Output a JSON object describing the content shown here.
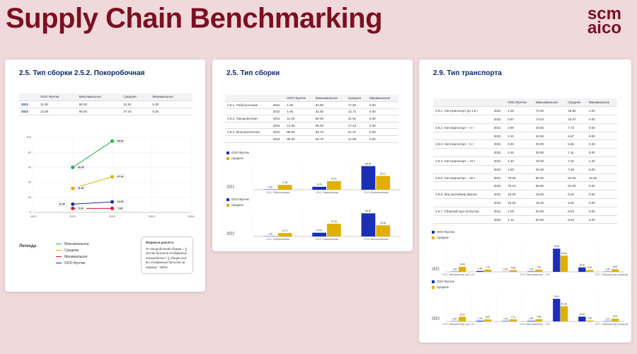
{
  "header": {
    "title": "Supply Chain Benchmarking",
    "logo": [
      "scm",
      "aico"
    ]
  },
  "panels": [
    {
      "title": "2.5. Тип сборки 2.5.2. Покоробочная",
      "table": {
        "columns": [
          "ООО Фунтик",
          "Максимальное",
          "Среднее",
          "Минимальное"
        ],
        "rows": [
          [
            "2021",
            "11.00",
            "60.00",
            "31.91",
            "5.30"
          ],
          [
            "2022",
            "14.00",
            "95.00",
            "47.43",
            "5.30"
          ]
        ]
      },
      "chart": {
        "type": "line",
        "x": [
          2021,
          2022
        ],
        "xlim": [
          2020,
          2024
        ],
        "xticks": [
          2020,
          2021,
          2022,
          2023,
          2024
        ],
        "ylim": [
          0,
          100
        ],
        "yticks": [
          0,
          20,
          40,
          60,
          80,
          100
        ],
        "grid": true,
        "series": [
          {
            "name": "Максимальное",
            "color": "#22b14c",
            "values": [
              60,
              95
            ],
            "value_labels": [
              "60.00",
              "95.00"
            ]
          },
          {
            "name": "Среднее",
            "color": "#e0b000",
            "values": [
              31.91,
              47.43
            ],
            "value_labels": [
              "31.91",
              "47.43"
            ]
          },
          {
            "name": "Минимальное",
            "color": "#e0102a",
            "values": [
              5.3,
              5.3
            ],
            "value_labels": [
              "5.30",
              "5.30"
            ]
          },
          {
            "name": "ООО Фунтик",
            "color": "#1a2fa0",
            "values": [
              11,
              14
            ],
            "value_labels": [
              "11.00",
              "14.00"
            ]
          }
        ]
      },
      "legend_title": "Легенда",
      "formula": {
        "title": "Формула расчета",
        "text": "% покоробочной сборки = ∑ кол-во бутылок отобранных покоробочно / ∑ общее кол-во отобранных бутылок за период * 100%"
      }
    },
    {
      "title": "2.5. Тип сборки",
      "table": {
        "columns": [
          "ООО Фунтик",
          "Максимальное",
          "Среднее",
          "Минимальное"
        ],
        "rows": [
          [
            "2.5.1. Побутылочная",
            "2021",
            "1.00",
            "54.00",
            "17.82",
            "0.00"
          ],
          [
            "2022",
            "1.00",
            "31.00",
            "12.71",
            "0.00"
          ],
          [
            "2.5.2. Покоробочная",
            "2021",
            "11.00",
            "60.00",
            "31.91",
            "5.30"
          ],
          [
            "2022",
            "14.00",
            "95.00",
            "47.43",
            "5.30"
          ],
          [
            "2.5.3. Монопаллетная",
            "2021",
            "88.00",
            "94.70",
            "51.37",
            "5.00"
          ],
          [
            "2022",
            "86.00",
            "94.70",
            "41.58",
            "5.00"
          ]
        ]
      },
      "charts": [
        {
          "type": "bar",
          "label": "2021",
          "ylim": [
            0,
            100
          ],
          "categories": [
            "2.5.1. Побутылочная",
            "2.5.2. Покоробочная",
            "2.5.3. Монопаллетная"
          ],
          "series": [
            {
              "name": "ООО Фунтик",
              "color": "#1a2fb5",
              "values": [
                1,
                11,
                88
              ],
              "value_labels": [
                "1.00",
                "11.00",
                "88.00"
              ]
            },
            {
              "name": "Среднее",
              "color": "#e0b000",
              "values": [
                17.82,
                31.91,
                51.37
              ],
              "value_labels": [
                "17.82",
                "31.91",
                "51.37"
              ]
            }
          ]
        },
        {
          "type": "bar",
          "label": "2022",
          "ylim": [
            0,
            100
          ],
          "categories": [
            "2.5.1. Побутылочная",
            "2.5.2. Покоробочная",
            "2.5.3. Монопаллетная"
          ],
          "series": [
            {
              "name": "ООО Фунтик",
              "color": "#1a2fb5",
              "values": [
                1,
                14,
                86
              ],
              "value_labels": [
                "1.00",
                "14.00",
                "86.00"
              ]
            },
            {
              "name": "Среднее",
              "color": "#e0b000",
              "values": [
                12.71,
                47.43,
                41.58
              ],
              "value_labels": [
                "12.71",
                "47.43",
                "41.58"
              ]
            }
          ]
        }
      ]
    },
    {
      "title": "2.9. Тип транспорта",
      "table": {
        "columns": [
          "ООО Фунтик",
          "Максимальное",
          "Среднее",
          "Минимальное"
        ],
        "rows": [
          [
            "2.9.1. Автотранспорт до 1,5 т",
            "2021",
            "1.00",
            "74.00",
            "16.95",
            "1.00"
          ],
          [
            "2022",
            "0.87",
            "74.53",
            "15.37",
            "0.00"
          ],
          [
            "2.9.2. Автотранспорт – 3 т",
            "2021",
            "2.90",
            "25.60",
            "7.72",
            "0.00"
          ],
          [
            "2022",
            "2.42",
            "32.90",
            "6.87",
            "0.00"
          ],
          [
            "2.9.3. Автотранспорт – 5 т",
            "2021",
            "0.40",
            "20.00",
            "5.56",
            "0.40"
          ],
          [
            "2022",
            "1.40",
            "30.00",
            "7.11",
            "0.00"
          ],
          [
            "2.9.4. Автотранспорт – 10 т",
            "2021",
            "1.40",
            "10.00",
            "7.52",
            "1.40"
          ],
          [
            "2022",
            "1.80",
            "20.00",
            "7.48",
            "0.00"
          ],
          [
            "2.9.5. Автотранспорт – 20 т",
            "2021",
            "78.00",
            "86.30",
            "54.84",
            "10.00"
          ],
          [
            "2022",
            "76.10",
            "86.90",
            "51.06",
            "0.00"
          ],
          [
            "2.9.6. Ж/д контейнер (вагон)",
            "2021",
            "15.00",
            "15.00",
            "6.20",
            "0.00"
          ],
          [
            "2022",
            "16.20",
            "16.20",
            "2.92",
            "0.00"
          ],
          [
            "2.9.7. Сборный груз (попутка)",
            "2021",
            "1.00",
            "53.00",
            "8.63",
            "0.00"
          ],
          [
            "2022",
            "1.12",
            "50.60",
            "8.94",
            "0.00"
          ]
        ]
      },
      "charts": [
        {
          "type": "bar",
          "label": "2021",
          "ylim": [
            0,
            100
          ],
          "categories": [
            "2.9.1. Автотранспорт до 1,5 т",
            null,
            null,
            "2.9.4. Автотранспорт – 10 т",
            null,
            null,
            "2.9.7. Сборный груз (попутка)"
          ],
          "series": [
            {
              "name": "ООО Фунтик",
              "color": "#1a2fb5",
              "values": [
                1,
                2.9,
                0.4,
                1.4,
                78,
                15,
                1
              ],
              "value_labels": [
                "1.00",
                "2.90",
                "0.40",
                "1.40",
                "78.00",
                "15.00",
                "1.00"
              ]
            },
            {
              "name": "Среднее",
              "color": "#e0b000",
              "values": [
                16.95,
                7.72,
                5.56,
                7.52,
                54.84,
                6.2,
                8.63
              ],
              "value_labels": [
                "16.95",
                "7.72",
                "5.56",
                "7.52",
                "54.84",
                "6.20",
                "8.63"
              ]
            }
          ]
        },
        {
          "type": "bar",
          "label": "2022",
          "ylim": [
            0,
            100
          ],
          "categories": [
            "2.9.1. Автотранспорт до 1,5 т",
            null,
            null,
            "2.9.4. Автотранспорт – 10 т",
            null,
            null,
            "2.9.7. Сборный груз (попутка)"
          ],
          "series": [
            {
              "name": "ООО Фунтик",
              "color": "#1a2fb5",
              "values": [
                0.87,
                2.42,
                1.4,
                1.8,
                76.1,
                16.2,
                1.12
              ],
              "value_labels": [
                "0.87",
                "2.42",
                "1.40",
                "1.80",
                "76.10",
                "16.20",
                "1.12"
              ]
            },
            {
              "name": "Среднее",
              "color": "#e0b000",
              "values": [
                15.37,
                6.87,
                7.11,
                7.48,
                51.06,
                2.92,
                8.94
              ],
              "value_labels": [
                "15.37",
                "6.87",
                "7.11",
                "7.48",
                "51.06",
                "2.92",
                "8.94"
              ]
            }
          ]
        }
      ]
    }
  ]
}
